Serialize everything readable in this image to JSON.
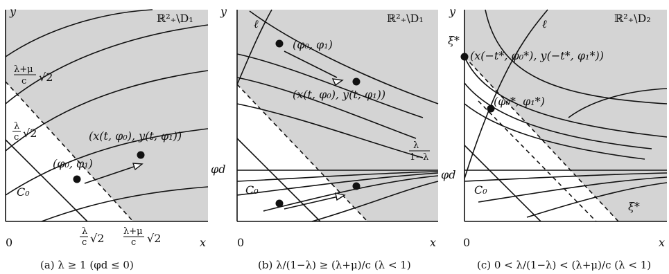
{
  "panels": [
    {
      "id": "a",
      "region": "ℝ²₊\\D₁",
      "y_axis": "y",
      "x_axis": "x",
      "origin": "0",
      "label_line_top": "λ+μ",
      "label_line_bot": "c",
      "label_sqrt": "√2",
      "label_lc_top": "λ",
      "label_lc_bot": "c",
      "C0": "C₀",
      "point_start": "(φ₀, φ₁)",
      "point_end": "(x(t, φ₀), y(t, φ₁))",
      "caption": "(a) λ ≥ 1   (φd ≤ 0)"
    },
    {
      "id": "b",
      "region": "ℝ²₊\\D₁",
      "y_axis": "y",
      "x_axis": "x",
      "origin": "0",
      "ell": "ℓ",
      "phi_d": "φd",
      "C0": "C₀",
      "point_start": "(φ₀, φ₁)",
      "point_end": "(x(t, φ₀), y(t, φ₁))",
      "lbl_l1l_top": "λ",
      "lbl_l1l_bot": "1−λ",
      "caption": "(b) λ/(1−λ) ≥ (λ+μ)/c   (λ < 1)"
    },
    {
      "id": "c",
      "region": "ℝ²₊\\D₂",
      "y_axis": "y",
      "x_axis": "x",
      "origin": "0",
      "ell": "ℓ",
      "phi_d": "φd",
      "C0": "C₀",
      "xi": "ξ*",
      "point_top": "(x(−t*, φ₀*), y(−t*, φ₁*))",
      "point_mid": "(φ₀*, φ₁*)",
      "caption": "(c) 0 < λ/(1−λ) < (λ+μ)/c   (λ < 1)"
    }
  ]
}
